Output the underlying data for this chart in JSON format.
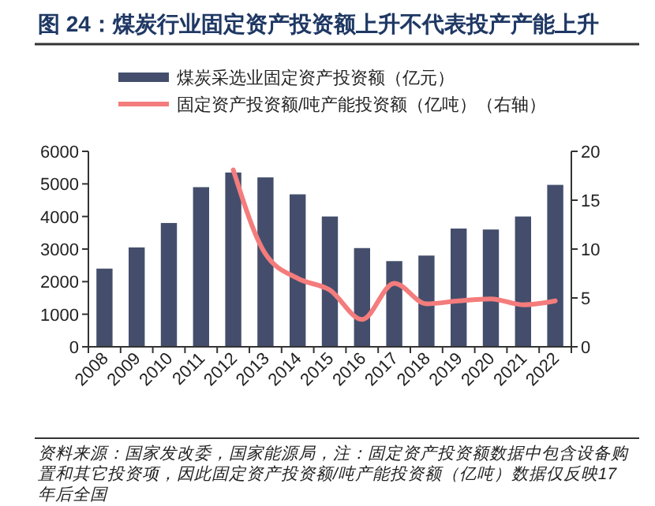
{
  "chart_data": {
    "type": "bar",
    "title": "图 24：煤炭行业固定资产投资额上升不代表投产产能上升",
    "categories": [
      "2008",
      "2009",
      "2010",
      "2011",
      "2012",
      "2013",
      "2014",
      "2015",
      "2016",
      "2017",
      "2018",
      "2019",
      "2020",
      "2021",
      "2022"
    ],
    "series": [
      {
        "name": "煤炭采选业固定资产投资额（亿元）",
        "color": "#444e6c",
        "values": [
          2400,
          3050,
          3800,
          4900,
          5350,
          5200,
          4680,
          4000,
          3030,
          2630,
          2800,
          3630,
          3600,
          4000,
          4970
        ]
      },
      {
        "name": "固定资产投资额/吨产能投资额（亿吨）（右轴）",
        "type": "line",
        "axis": "y2",
        "color": "#f47c7c",
        "values": [
          null,
          null,
          null,
          null,
          18.1,
          9.5,
          7.0,
          5.8,
          2.8,
          6.5,
          4.4,
          4.7,
          4.9,
          4.3,
          4.7
        ]
      }
    ],
    "ylim": [
      0,
      6000
    ],
    "yticks": [
      0,
      1000,
      2000,
      3000,
      4000,
      5000,
      6000
    ],
    "y2lim": [
      0,
      20
    ],
    "y2ticks": [
      0,
      5,
      10,
      15,
      20
    ],
    "legend": "top",
    "grid": false,
    "annotations": [
      "资料来源：国家发改委，国家能源局，注：固定资产投资额数据中包含设备购置和其它投资项，因此固定资产投资额/吨产能投资额（亿吨）数据仅反映17年后全国"
    ]
  }
}
